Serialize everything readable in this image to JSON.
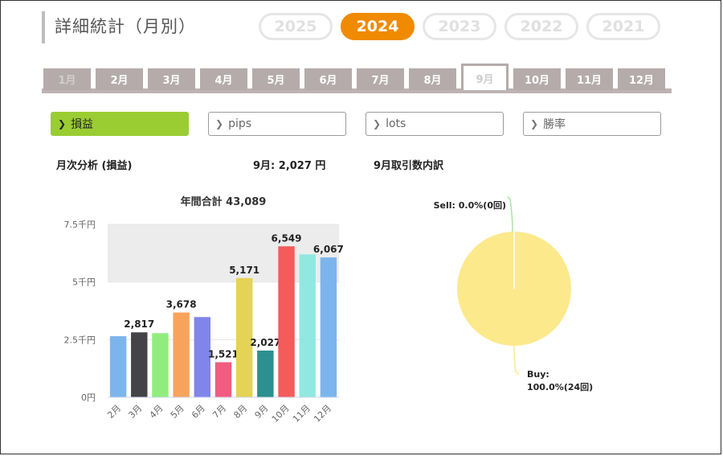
{
  "header": {
    "title": "詳細統計（月別）"
  },
  "years": [
    {
      "label": "2025",
      "active": false
    },
    {
      "label": "2024",
      "active": true
    },
    {
      "label": "2023",
      "active": false
    },
    {
      "label": "2022",
      "active": false
    },
    {
      "label": "2021",
      "active": false
    }
  ],
  "months": [
    {
      "label": "1月",
      "state": "dim"
    },
    {
      "label": "2月",
      "state": "normal"
    },
    {
      "label": "3月",
      "state": "normal"
    },
    {
      "label": "4月",
      "state": "normal"
    },
    {
      "label": "5月",
      "state": "normal"
    },
    {
      "label": "6月",
      "state": "normal"
    },
    {
      "label": "7月",
      "state": "normal"
    },
    {
      "label": "8月",
      "state": "normal"
    },
    {
      "label": "9月",
      "state": "active"
    },
    {
      "label": "10月",
      "state": "normal"
    },
    {
      "label": "11月",
      "state": "normal"
    },
    {
      "label": "12月",
      "state": "normal"
    }
  ],
  "metrics": [
    {
      "label": "損益",
      "active": true
    },
    {
      "label": "pips",
      "active": false
    },
    {
      "label": "lots",
      "active": false
    },
    {
      "label": "勝率",
      "active": false
    }
  ],
  "summary": {
    "analysis_label": "月次分析 (損益)",
    "month_value": "9月:  2,027 円",
    "breakdown_label": "9月取引数内訳"
  },
  "chart_data": [
    {
      "type": "bar",
      "title": "年間合計 43,089",
      "categories": [
        "2月",
        "3月",
        "4月",
        "5月",
        "6月",
        "7月",
        "8月",
        "9月",
        "10月",
        "11月",
        "12月"
      ],
      "values": [
        2650,
        2817,
        2780,
        3678,
        3480,
        1521,
        5171,
        2027,
        6549,
        6200,
        6067
      ],
      "data_labels": [
        "",
        "2,817",
        "",
        "3,678",
        "",
        "1,521",
        "5,171",
        "2,027",
        "6,549",
        "",
        "6,067"
      ],
      "colors": [
        "#7cb5ec",
        "#434348",
        "#90ed7d",
        "#f7a35c",
        "#8085e9",
        "#f15c80",
        "#e4d354",
        "#2b908f",
        "#f45b5b",
        "#91e8e1",
        "#7cb5ec"
      ],
      "y_ticks": [
        "0円",
        "2.5千円",
        "5千円",
        "7.5千円"
      ],
      "ylim": [
        0,
        7500
      ],
      "plot_bands": [
        [
          5000,
          7500
        ]
      ]
    },
    {
      "type": "pie",
      "slices": [
        {
          "name": "Sell",
          "value": 0,
          "label": "Sell: 0.0%(0回)",
          "color": "#a8e6a0"
        },
        {
          "name": "Buy",
          "value": 24,
          "label_line1": "Buy:",
          "label_line2": "100.0%(24回)",
          "color": "#fce98c"
        }
      ]
    }
  ]
}
